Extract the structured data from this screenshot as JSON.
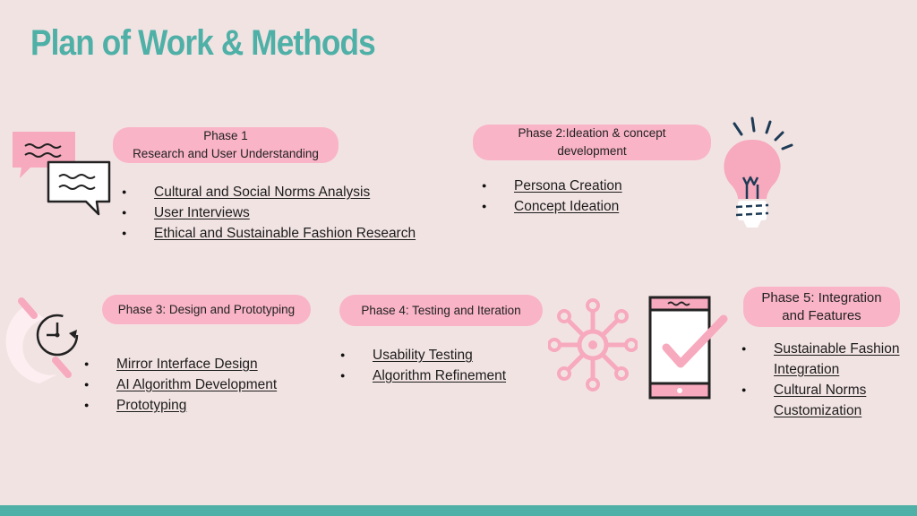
{
  "title": "Plan of Work & Methods",
  "colors": {
    "accent": "#4eb0a6",
    "pill": "#f9b4c7",
    "background": "#f2e3e3",
    "pink": "#f7a9bd"
  },
  "phases": [
    {
      "title_line1": "Phase 1",
      "title_line2": "Research and User Understanding",
      "items": [
        "Cultural and Social Norms Analysis",
        "User Interviews",
        "Ethical and Sustainable Fashion Research"
      ],
      "icon": "chat-bubbles-icon"
    },
    {
      "title_line1": "Phase 2:Ideation & concept",
      "title_line2": "development",
      "items": [
        "Persona Creation",
        "Concept Ideation"
      ],
      "icon": "lightbulb-icon"
    },
    {
      "title": "Phase 3: Design and Prototyping",
      "items": [
        "Mirror Interface Design",
        "AI Algorithm Development",
        "Prototyping"
      ],
      "icon": "clock-icon"
    },
    {
      "title": "Phase 4: Testing and Iteration",
      "items": [
        "Usability Testing",
        "Algorithm Refinement"
      ],
      "icon": "network-icon"
    },
    {
      "title_line1": "Phase 5: Integration",
      "title_line2": "and Features",
      "items": [
        "Sustainable Fashion",
        "Integration",
        "Cultural Norms",
        "Customization"
      ],
      "icon": "phone-check-icon"
    }
  ]
}
